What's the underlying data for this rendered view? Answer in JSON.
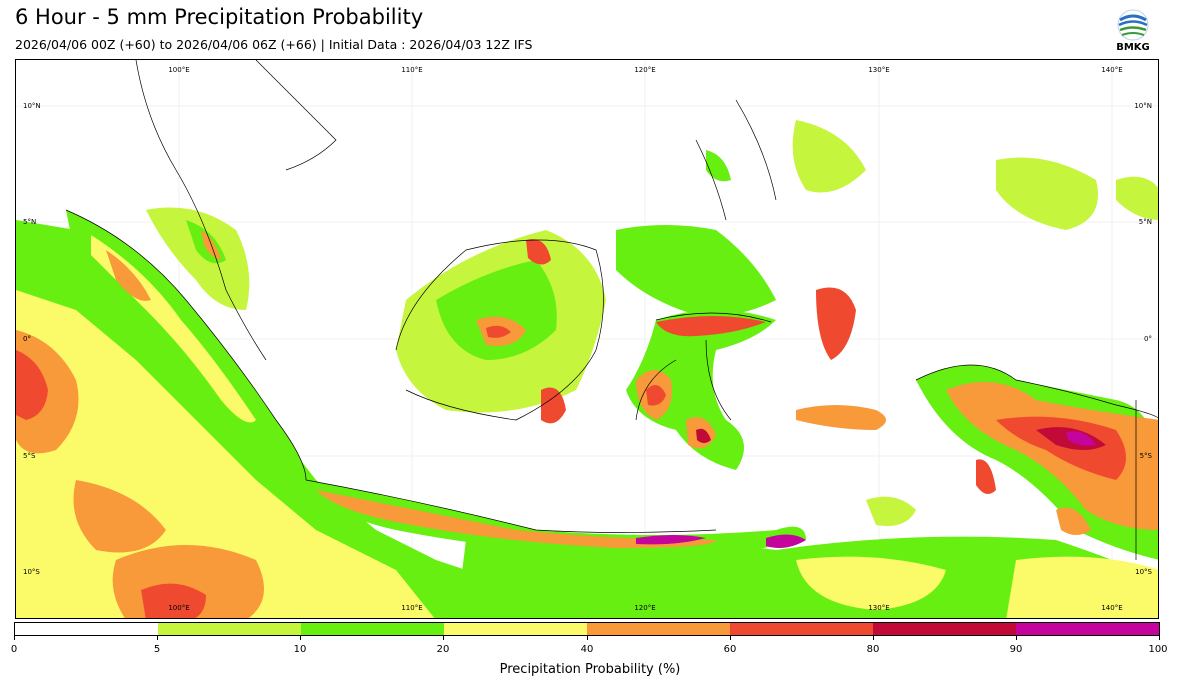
{
  "title": "6 Hour - 5 mm Precipitation Probability",
  "subtitle": "2026/04/06 00Z (+60) to 2026/04/06 06Z (+66) | Initial Data : 2026/04/03 12Z IFS",
  "logo": {
    "text": "BMKG",
    "icon": "bmkg-logo-icon"
  },
  "map": {
    "lon_labels": [
      "100°E",
      "110°E",
      "120°E",
      "130°E",
      "140°E"
    ],
    "lat_labels": [
      "10°N",
      "5°N",
      "0°",
      "5°S",
      "10°S"
    ]
  },
  "colorbar": {
    "title": "Precipitation Probability (%)",
    "ticks": [
      "0",
      "5",
      "10",
      "20",
      "40",
      "60",
      "80",
      "90",
      "100"
    ],
    "colors": [
      "#ffffff",
      "#c6f53e",
      "#66ef10",
      "#fbfb6a",
      "#f89a3a",
      "#ef4a30",
      "#c20a38",
      "#c4049b"
    ]
  }
}
